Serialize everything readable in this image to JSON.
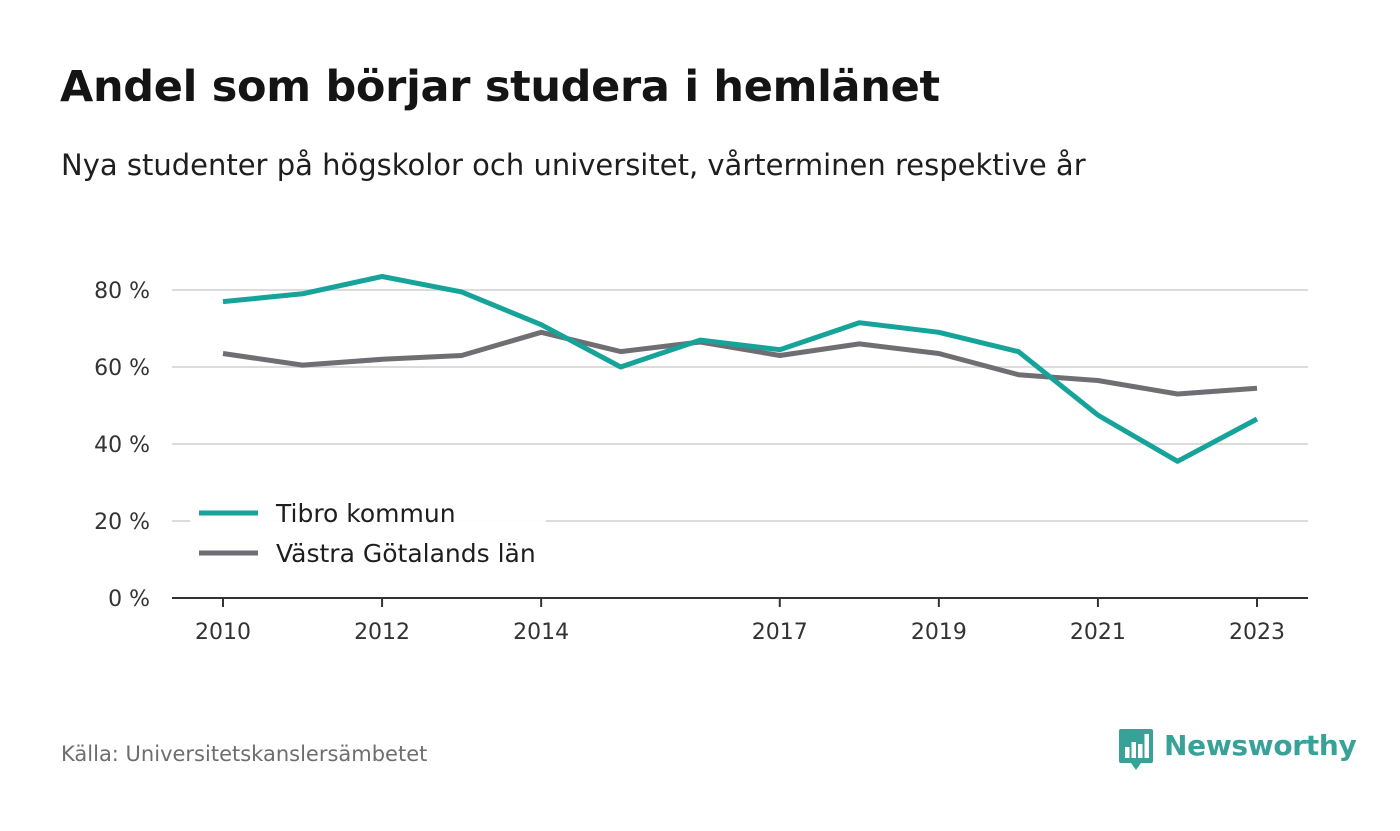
{
  "header": {
    "title": "Andel som börjar studera i hemlänet",
    "subtitle": "Nya studenter på högskolor och universitet, vårterminen respektive år"
  },
  "footer": {
    "source": "Källa: Universitetskanslersämbetet",
    "logo_text": "Newsworthy",
    "logo_icon": "bar-chart-speech-bubble-icon"
  },
  "colors": {
    "series_primary": "#16a39a",
    "series_secondary": "#6f6e73",
    "grid": "#dcdcdc",
    "axis": "#333333",
    "brand": "#38a198"
  },
  "chart_data": {
    "type": "line",
    "title": "Andel som börjar studera i hemlänet",
    "subtitle": "Nya studenter på högskolor och universitet, vårterminen respektive år",
    "x": [
      2010,
      2011,
      2012,
      2013,
      2014,
      2015,
      2016,
      2017,
      2018,
      2019,
      2020,
      2021,
      2022,
      2023
    ],
    "x_tick_values": [
      2010,
      2012,
      2014,
      2017,
      2019,
      2021,
      2023
    ],
    "x_tick_labels": [
      "2010",
      "2012",
      "2014",
      "2017",
      "2019",
      "2021",
      "2023"
    ],
    "y_ticks": [
      0,
      20,
      40,
      60,
      80
    ],
    "y_tick_labels": [
      "0 %",
      "20 %",
      "40 %",
      "60 %",
      "80 %"
    ],
    "ylim": [
      0,
      80
    ],
    "grid": true,
    "legend_position": "bottom-left",
    "series": [
      {
        "name": "Tibro kommun",
        "color": "#16a39a",
        "values": [
          77,
          79,
          83.5,
          79.5,
          71,
          60,
          67,
          64.5,
          71.5,
          69,
          64,
          47.5,
          35.5,
          46.5
        ]
      },
      {
        "name": "Västra Götalands län",
        "color": "#6f6e73",
        "values": [
          63.5,
          60.5,
          62,
          63,
          69,
          64,
          66.5,
          63,
          66,
          63.5,
          58,
          56.5,
          53,
          54.5
        ]
      }
    ]
  }
}
